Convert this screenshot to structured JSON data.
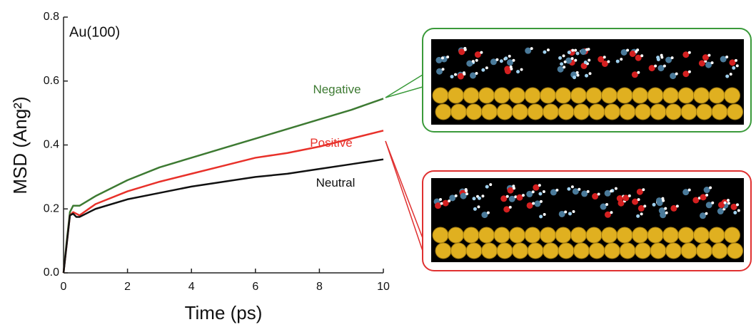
{
  "chart_data": {
    "type": "line",
    "annotation": "Au(100)",
    "x_label": "Time (ps)",
    "y_label": "MSD (Ang²)",
    "x": [
      0,
      0.1,
      0.2,
      0.3,
      0.4,
      0.5,
      1,
      2,
      3,
      4,
      5,
      6,
      7,
      8,
      9,
      10
    ],
    "series": [
      {
        "name": "Negative",
        "color": "#3d7a32",
        "values": [
          0,
          0.1,
          0.19,
          0.21,
          0.21,
          0.21,
          0.24,
          0.29,
          0.33,
          0.36,
          0.39,
          0.42,
          0.45,
          0.48,
          0.51,
          0.545
        ]
      },
      {
        "name": "Positive",
        "color": "#e8312a",
        "values": [
          0,
          0.09,
          0.18,
          0.19,
          0.185,
          0.18,
          0.215,
          0.255,
          0.285,
          0.31,
          0.335,
          0.36,
          0.375,
          0.395,
          0.42,
          0.445
        ]
      },
      {
        "name": "Neutral",
        "color": "#111111",
        "values": [
          0,
          0.09,
          0.18,
          0.185,
          0.175,
          0.175,
          0.2,
          0.23,
          0.25,
          0.27,
          0.285,
          0.3,
          0.31,
          0.325,
          0.34,
          0.355
        ]
      }
    ],
    "xlim": [
      0,
      10
    ],
    "xticks": [
      0,
      2,
      4,
      6,
      8,
      10
    ],
    "ylim": [
      0,
      0.8
    ],
    "yticks": [
      {
        "value": 0,
        "label": "0.0"
      },
      0.2,
      0.4,
      0.6,
      0.8
    ],
    "grid": false
  }
}
